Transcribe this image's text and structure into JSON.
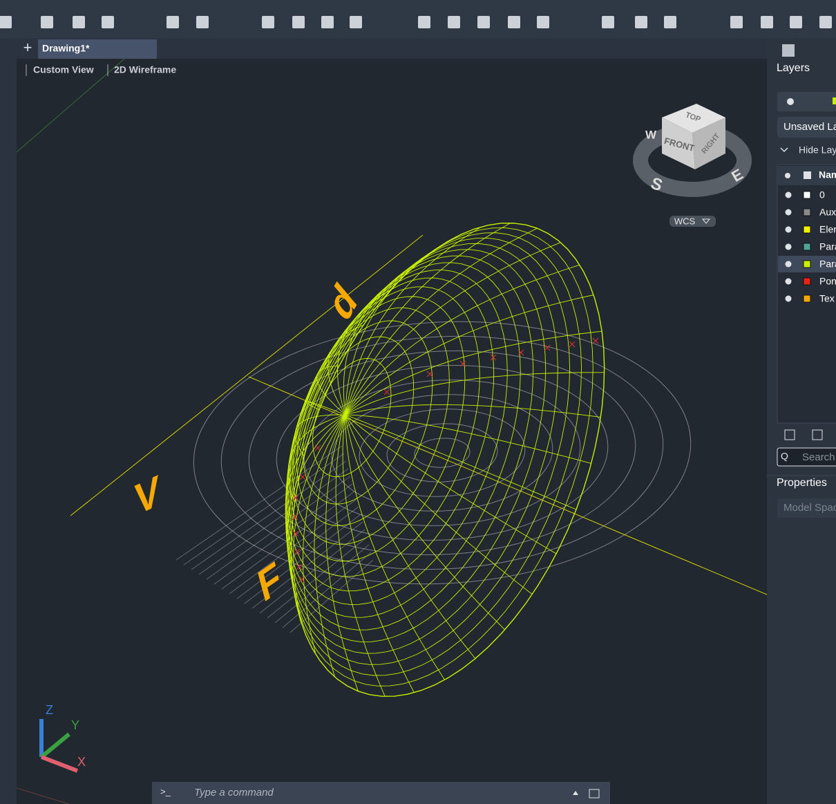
{
  "tab": {
    "title": "Drawing1*"
  },
  "viewport": {
    "view": "Custom View",
    "style": "2D Wireframe",
    "labels": [
      "d",
      "V",
      "F"
    ],
    "viewcube": {
      "top": "TOP",
      "front": "FRONT",
      "right": "RIGHT",
      "compass": [
        "W",
        "S",
        "E"
      ],
      "wcs": "WCS"
    },
    "ucs": [
      "Z",
      "Y",
      "X"
    ]
  },
  "command": {
    "prompt": ">_",
    "placeholder": "Type a command"
  },
  "panel": {
    "title": "Layers",
    "layer_state": "Unsaved La",
    "hide": "Hide Lay",
    "column": "Nam",
    "layers": [
      {
        "name": "0",
        "color": "#ffffff"
      },
      {
        "name": "Aux",
        "color": "#8a8a8a"
      },
      {
        "name": "Eler",
        "color": "#f2f200"
      },
      {
        "name": "Para",
        "color": "#4fa59a"
      },
      {
        "name": "Para",
        "color": "#c8f000"
      },
      {
        "name": "Pon",
        "color": "#ee2211"
      },
      {
        "name": "Tex",
        "color": "#f5a800"
      }
    ],
    "search": "Search",
    "properties": "Properties",
    "space": "Model Spac"
  }
}
